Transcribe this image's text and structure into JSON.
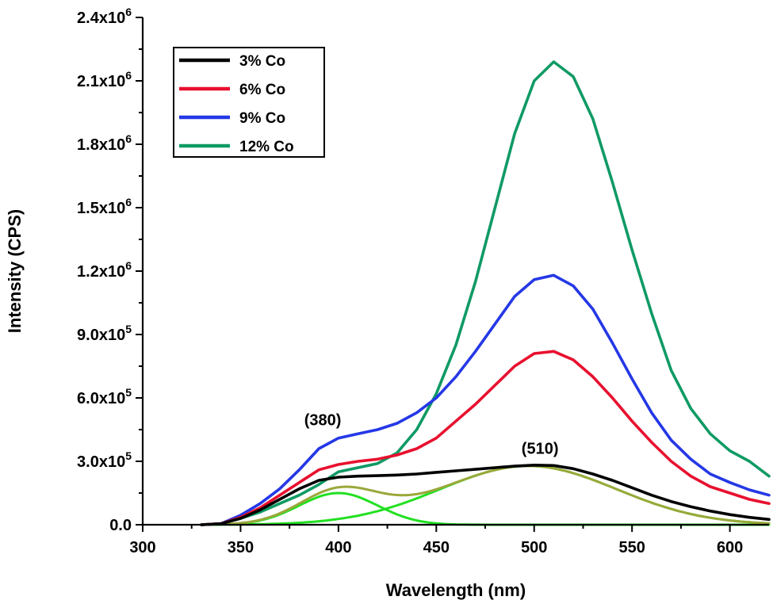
{
  "chart_data": {
    "type": "line",
    "title": "",
    "xlabel": "Wavelength (nm)",
    "ylabel": "Intensity (CPS)",
    "xlim": [
      300,
      620
    ],
    "ylim": [
      0,
      2400000
    ],
    "x_ticks": [
      300,
      350,
      400,
      450,
      500,
      550,
      600
    ],
    "x_tick_labels": [
      "300",
      "350",
      "400",
      "450",
      "500",
      "550",
      "600"
    ],
    "y_ticks": [
      0,
      300000,
      600000,
      900000,
      1200000,
      1500000,
      1800000,
      2100000,
      2400000
    ],
    "y_tick_labels": [
      {
        "mantissa": "0.0",
        "exp": ""
      },
      {
        "mantissa": "3.0x10",
        "exp": "5"
      },
      {
        "mantissa": "6.0x10",
        "exp": "5"
      },
      {
        "mantissa": "9.0x10",
        "exp": "5"
      },
      {
        "mantissa": "1.2x10",
        "exp": "6"
      },
      {
        "mantissa": "1.5x10",
        "exp": "6"
      },
      {
        "mantissa": "1.8x10",
        "exp": "6"
      },
      {
        "mantissa": "2.1x10",
        "exp": "6"
      },
      {
        "mantissa": "2.4x10",
        "exp": "6"
      }
    ],
    "legend": {
      "position": "top-left"
    },
    "series": [
      {
        "name": "12% Co",
        "color": "#0f9a64",
        "x": [
          330,
          340,
          350,
          360,
          370,
          380,
          390,
          400,
          410,
          420,
          430,
          440,
          450,
          460,
          470,
          480,
          490,
          500,
          510,
          520,
          530,
          540,
          550,
          560,
          570,
          580,
          590,
          600,
          610,
          620
        ],
        "y": [
          0,
          5000,
          30000,
          60000,
          100000,
          140000,
          190000,
          250000,
          270000,
          290000,
          340000,
          450000,
          620000,
          850000,
          1150000,
          1500000,
          1850000,
          2100000,
          2190000,
          2120000,
          1920000,
          1620000,
          1300000,
          1000000,
          730000,
          550000,
          430000,
          350000,
          300000,
          230000
        ]
      },
      {
        "name": "9% Co",
        "color": "#2538e6",
        "x": [
          330,
          340,
          350,
          360,
          370,
          380,
          390,
          400,
          410,
          420,
          430,
          440,
          450,
          460,
          470,
          480,
          490,
          500,
          510,
          520,
          530,
          540,
          550,
          560,
          570,
          580,
          590,
          600,
          610,
          620
        ],
        "y": [
          0,
          5000,
          45000,
          100000,
          170000,
          260000,
          360000,
          410000,
          430000,
          450000,
          480000,
          530000,
          600000,
          700000,
          820000,
          950000,
          1080000,
          1160000,
          1180000,
          1130000,
          1020000,
          860000,
          690000,
          530000,
          400000,
          310000,
          240000,
          200000,
          165000,
          140000
        ]
      },
      {
        "name": "6% Co",
        "color": "#e8102e",
        "x": [
          330,
          340,
          350,
          360,
          370,
          380,
          390,
          400,
          410,
          420,
          430,
          440,
          450,
          460,
          470,
          480,
          490,
          500,
          510,
          520,
          530,
          540,
          550,
          560,
          570,
          580,
          590,
          600,
          610,
          620
        ],
        "y": [
          0,
          5000,
          35000,
          80000,
          140000,
          200000,
          260000,
          285000,
          300000,
          310000,
          330000,
          360000,
          410000,
          490000,
          570000,
          660000,
          750000,
          810000,
          820000,
          780000,
          700000,
          600000,
          490000,
          390000,
          300000,
          230000,
          180000,
          150000,
          120000,
          100000
        ]
      },
      {
        "name": "3% Co",
        "color": "#000000",
        "x": [
          330,
          340,
          350,
          360,
          370,
          380,
          390,
          400,
          410,
          420,
          430,
          440,
          450,
          460,
          470,
          480,
          490,
          500,
          510,
          520,
          530,
          540,
          550,
          560,
          570,
          580,
          590,
          600,
          610,
          620
        ],
        "y": [
          0,
          5000,
          30000,
          70000,
          120000,
          170000,
          210000,
          225000,
          230000,
          232000,
          235000,
          240000,
          248000,
          255000,
          262000,
          270000,
          277000,
          282000,
          280000,
          265000,
          240000,
          210000,
          175000,
          140000,
          110000,
          85000,
          65000,
          48000,
          35000,
          25000
        ]
      }
    ],
    "fit_curves": [
      {
        "name": "fit-380",
        "color": "#22e022",
        "type": "gaussian",
        "center": 400,
        "amplitude": 150000,
        "sigma": 20
      },
      {
        "name": "fit-510",
        "color": "#22e022",
        "type": "gaussian",
        "center": 497,
        "amplitude": 278000,
        "sigma": 45
      },
      {
        "name": "fit-sum",
        "color": "#9aa83a",
        "type": "sum"
      }
    ],
    "annotations": [
      {
        "text": "(380)",
        "x": 392,
        "y": 470000
      },
      {
        "text": "(510)",
        "x": 503,
        "y": 335000
      }
    ]
  }
}
